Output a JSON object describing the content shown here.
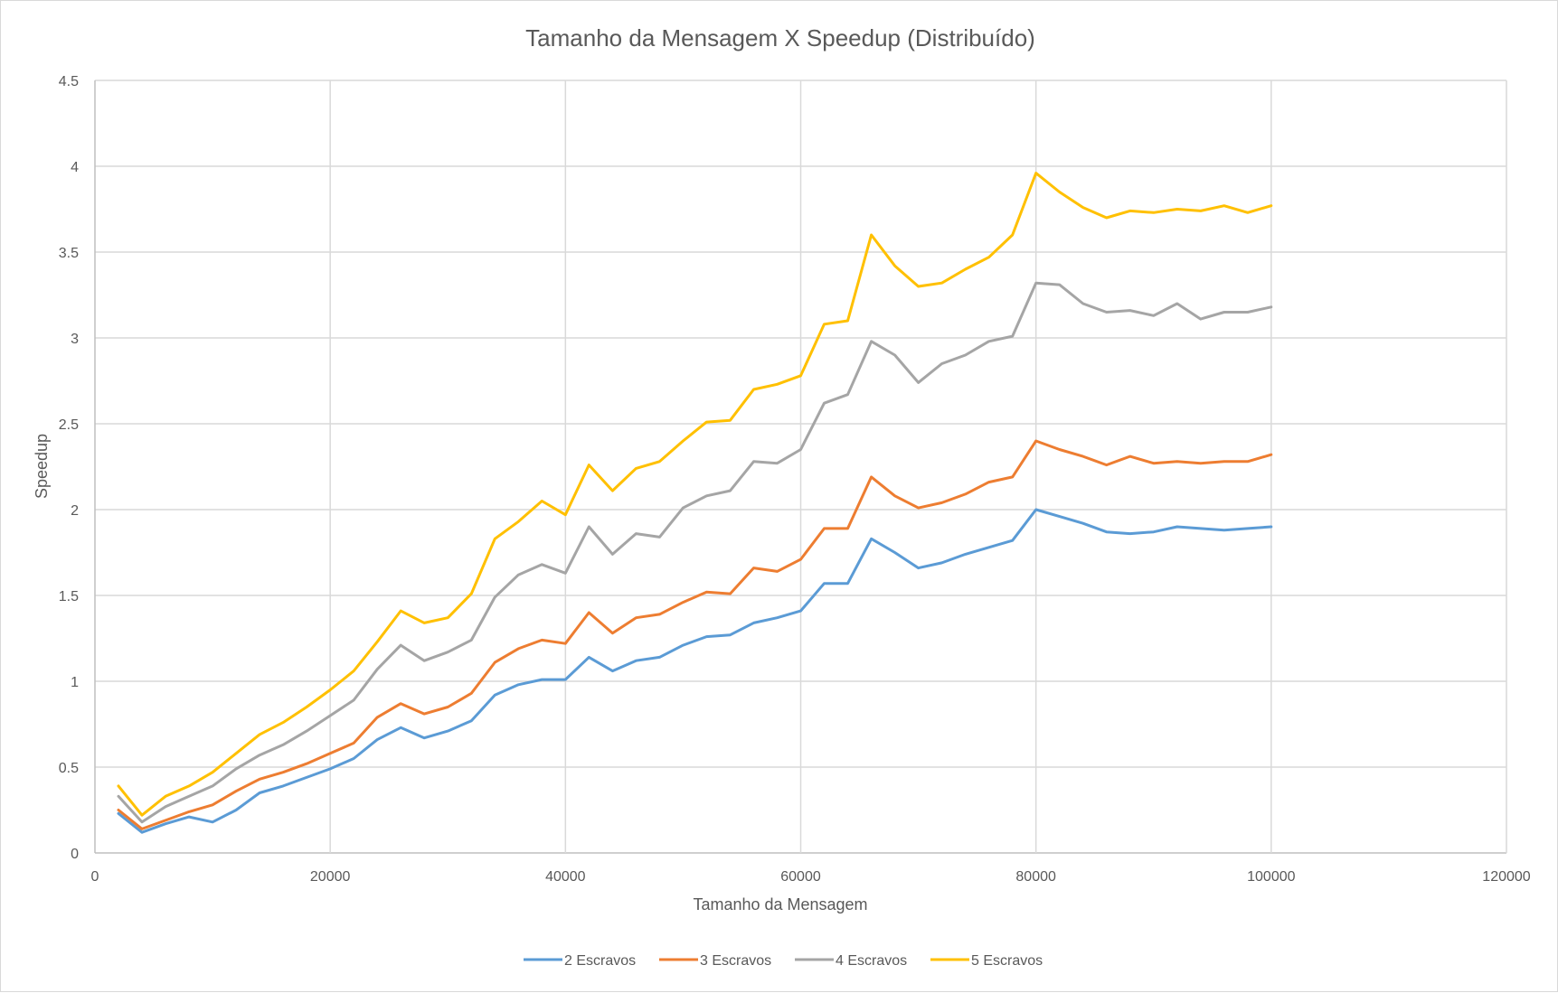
{
  "chart_data": {
    "type": "line",
    "title": "Tamanho da Mensagem X Speedup  (Distribuído)",
    "xlabel": "Tamanho da Mensagem",
    "ylabel": "Speedup",
    "xlim": [
      0,
      120000
    ],
    "ylim": [
      0,
      4.5
    ],
    "x_ticks": [
      "0",
      "20000",
      "40000",
      "60000",
      "80000",
      "100000",
      "120000"
    ],
    "y_ticks": [
      "0",
      "0.5",
      "1",
      "1.5",
      "2",
      "2.5",
      "3",
      "3.5",
      "4",
      "4.5"
    ],
    "grid": true,
    "legend_position": "bottom",
    "x": [
      2000,
      4000,
      6000,
      8000,
      10000,
      12000,
      14000,
      16000,
      18000,
      20000,
      22000,
      24000,
      26000,
      28000,
      30000,
      32000,
      34000,
      36000,
      38000,
      40000,
      42000,
      44000,
      46000,
      48000,
      50000,
      52000,
      54000,
      56000,
      58000,
      60000,
      62000,
      64000,
      66000,
      68000,
      70000,
      72000,
      74000,
      76000,
      78000,
      80000,
      82000,
      84000,
      86000,
      88000,
      90000,
      92000,
      94000,
      96000,
      98000,
      100000
    ],
    "series": [
      {
        "name": "2 Escravos",
        "color": "#5b9bd5",
        "values": [
          0.23,
          0.12,
          0.17,
          0.21,
          0.18,
          0.25,
          0.35,
          0.39,
          0.44,
          0.49,
          0.55,
          0.66,
          0.73,
          0.67,
          0.71,
          0.77,
          0.92,
          0.98,
          1.01,
          1.01,
          1.14,
          1.06,
          1.12,
          1.14,
          1.21,
          1.26,
          1.27,
          1.34,
          1.37,
          1.41,
          1.57,
          1.57,
          1.83,
          1.75,
          1.66,
          1.69,
          1.74,
          1.78,
          1.82,
          2.0,
          1.96,
          1.92,
          1.87,
          1.86,
          1.87,
          1.9,
          1.89,
          1.88,
          1.89,
          1.9
        ]
      },
      {
        "name": "3 Escravos",
        "color": "#ed7d31",
        "values": [
          0.25,
          0.14,
          0.19,
          0.24,
          0.28,
          0.36,
          0.43,
          0.47,
          0.52,
          0.58,
          0.64,
          0.79,
          0.87,
          0.81,
          0.85,
          0.93,
          1.11,
          1.19,
          1.24,
          1.22,
          1.4,
          1.28,
          1.37,
          1.39,
          1.46,
          1.52,
          1.51,
          1.66,
          1.64,
          1.71,
          1.89,
          1.89,
          2.19,
          2.08,
          2.01,
          2.04,
          2.09,
          2.16,
          2.19,
          2.4,
          2.35,
          2.31,
          2.26,
          2.31,
          2.27,
          2.28,
          2.27,
          2.28,
          2.28,
          2.32
        ]
      },
      {
        "name": "4 Escravos",
        "color": "#a5a5a5",
        "values": [
          0.33,
          0.18,
          0.27,
          0.33,
          0.39,
          0.49,
          0.57,
          0.63,
          0.71,
          0.8,
          0.89,
          1.07,
          1.21,
          1.12,
          1.17,
          1.24,
          1.49,
          1.62,
          1.68,
          1.63,
          1.9,
          1.74,
          1.86,
          1.84,
          2.01,
          2.08,
          2.11,
          2.28,
          2.27,
          2.35,
          2.62,
          2.67,
          2.98,
          2.9,
          2.74,
          2.85,
          2.9,
          2.98,
          3.01,
          3.32,
          3.31,
          3.2,
          3.15,
          3.16,
          3.13,
          3.2,
          3.11,
          3.15,
          3.15,
          3.18
        ]
      },
      {
        "name": "5 Escravos",
        "color": "#ffc000",
        "values": [
          0.39,
          0.22,
          0.33,
          0.39,
          0.47,
          0.58,
          0.69,
          0.76,
          0.85,
          0.95,
          1.06,
          1.23,
          1.41,
          1.34,
          1.37,
          1.51,
          1.83,
          1.93,
          2.05,
          1.97,
          2.26,
          2.11,
          2.24,
          2.28,
          2.4,
          2.51,
          2.52,
          2.7,
          2.73,
          2.78,
          3.08,
          3.1,
          3.6,
          3.42,
          3.3,
          3.32,
          3.4,
          3.47,
          3.6,
          3.96,
          3.85,
          3.76,
          3.7,
          3.74,
          3.73,
          3.75,
          3.74,
          3.77,
          3.73,
          3.77
        ]
      }
    ]
  }
}
